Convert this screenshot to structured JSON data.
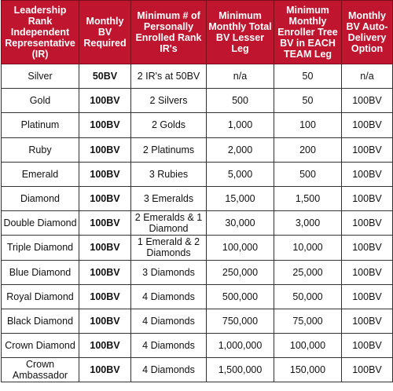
{
  "headers": [
    "Leadership Rank Independent Representative (IR)",
    "Monthly BV Required",
    "Minimum # of Personally Enrolled Rank IR's",
    "Minimum Monthly Total BV Lesser Leg",
    "Minimum Monthly Enroller Tree BV in EACH TEAM Leg",
    "Monthly BV Auto-Delivery Option"
  ],
  "rows": [
    {
      "rank": "Silver",
      "bv": "50BV",
      "enrolled": "2 IR's at 50BV",
      "lesser_leg": "n/a",
      "team_leg": "50",
      "autodelivery": "n/a"
    },
    {
      "rank": "Gold",
      "bv": "100BV",
      "enrolled": "2 Silvers",
      "lesser_leg": "500",
      "team_leg": "50",
      "autodelivery": "100BV"
    },
    {
      "rank": "Platinum",
      "bv": "100BV",
      "enrolled": "2 Golds",
      "lesser_leg": "1,000",
      "team_leg": "100",
      "autodelivery": "100BV"
    },
    {
      "rank": "Ruby",
      "bv": "100BV",
      "enrolled": "2 Platinums",
      "lesser_leg": "2,000",
      "team_leg": "200",
      "autodelivery": "100BV"
    },
    {
      "rank": "Emerald",
      "bv": "100BV",
      "enrolled": "3 Rubies",
      "lesser_leg": "5,000",
      "team_leg": "500",
      "autodelivery": "100BV"
    },
    {
      "rank": "Diamond",
      "bv": "100BV",
      "enrolled": "3 Emeralds",
      "lesser_leg": "15,000",
      "team_leg": "1,500",
      "autodelivery": "100BV"
    },
    {
      "rank": "Double Diamond",
      "bv": "100BV",
      "enrolled": "2 Emeralds & 1 Diamond",
      "lesser_leg": "30,000",
      "team_leg": "3,000",
      "autodelivery": "100BV"
    },
    {
      "rank": "Triple Diamond",
      "bv": "100BV",
      "enrolled": "1 Emerald & 2 Diamonds",
      "lesser_leg": "100,000",
      "team_leg": "10,000",
      "autodelivery": "100BV"
    },
    {
      "rank": "Blue Diamond",
      "bv": "100BV",
      "enrolled": "3 Diamonds",
      "lesser_leg": "250,000",
      "team_leg": "25,000",
      "autodelivery": "100BV"
    },
    {
      "rank": "Royal Diamond",
      "bv": "100BV",
      "enrolled": "4 Diamonds",
      "lesser_leg": "500,000",
      "team_leg": "50,000",
      "autodelivery": "100BV"
    },
    {
      "rank": "Black Diamond",
      "bv": "100BV",
      "enrolled": "4 Diamonds",
      "lesser_leg": "750,000",
      "team_leg": "75,000",
      "autodelivery": "100BV"
    },
    {
      "rank": "Crown Diamond",
      "bv": "100BV",
      "enrolled": "4 Diamonds",
      "lesser_leg": "1,000,000",
      "team_leg": "100,000",
      "autodelivery": "100BV"
    },
    {
      "rank": "Crown Ambassador",
      "bv": "100BV",
      "enrolled": "4 Diamonds",
      "lesser_leg": "1,500,000",
      "team_leg": "150,000",
      "autodelivery": "100BV"
    }
  ]
}
